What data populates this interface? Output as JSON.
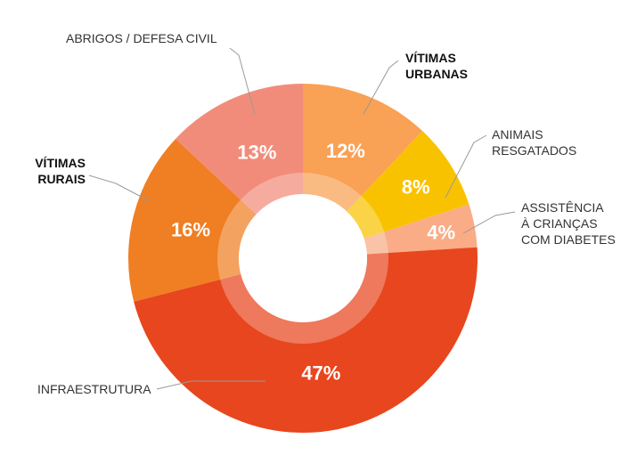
{
  "chart_data": {
    "type": "pie",
    "donut": true,
    "slices": [
      {
        "label": "INFRAESTRUTURA",
        "value": 47,
        "display": "47%",
        "color": "#E8461E"
      },
      {
        "label": "VÍTIMAS RURAIS",
        "value": 16,
        "display": "16%",
        "color": "#F07E22"
      },
      {
        "label": "ABRIGOS / DEFESA CIVIL",
        "value": 13,
        "display": "13%",
        "color": "#F28C7A"
      },
      {
        "label": "VÍTIMAS URBANAS",
        "value": 12,
        "display": "12%",
        "color": "#F9A154"
      },
      {
        "label": "ANIMAIS RESGATADOS",
        "value": 8,
        "display": "8%",
        "color": "#F9C200"
      },
      {
        "label": "ASSISTÊNCIA À CRIANÇAS COM DIABETES",
        "value": 4,
        "display": "4%",
        "color": "#F9AC86"
      }
    ],
    "callouts": {
      "INFRAESTRUTURA": [
        "INFRAESTRUTURA"
      ],
      "VÍTIMAS RURAIS": [
        "VÍTIMAS",
        "RURAIS"
      ],
      "ABRIGOS / DEFESA CIVIL": [
        "ABRIGOS / DEFESA CIVIL"
      ],
      "VÍTIMAS URBANAS": [
        "VÍTIMAS",
        "URBANAS"
      ],
      "ANIMAIS RESGATADOS": [
        "ANIMAIS",
        "RESGATADOS"
      ],
      "ASSISTÊNCIA À CRIANÇAS COM DIABETES": [
        "ASSISTÊNCIA",
        "À CRIANÇAS",
        "COM DIABETES"
      ]
    },
    "bold_callouts": [
      "VÍTIMAS RURAIS",
      "VÍTIMAS URBANAS"
    ],
    "legend": "none",
    "grid": false
  }
}
